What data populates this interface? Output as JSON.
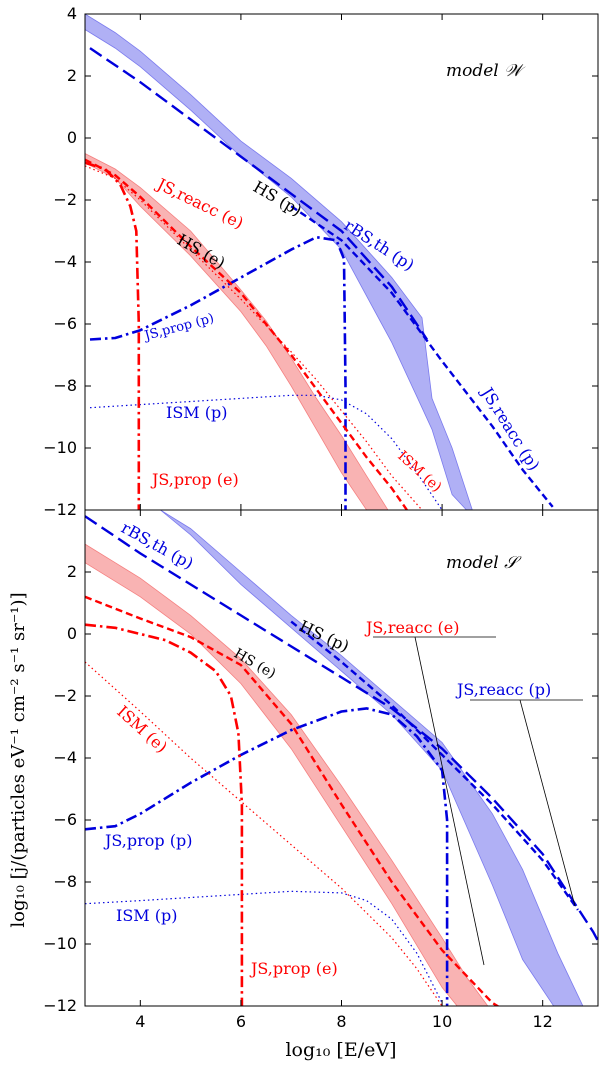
{
  "colors": {
    "red": "#ff0000",
    "blue": "#0000dd",
    "blue_band": "#7b7bee",
    "red_band": "#f58080",
    "black": "#000000"
  },
  "axes": {
    "xlabel": "log₁₀ [E/eV]",
    "ylabel": "log₁₀ [j/(particles eV⁻¹ cm⁻² s⁻¹ sr⁻¹)]",
    "xlim": [
      2.9,
      13.1
    ],
    "xticks": [
      4,
      6,
      8,
      10,
      12
    ],
    "xtick_labels": [
      "4",
      "6",
      "8",
      "10",
      "12"
    ]
  },
  "chart_data": [
    {
      "type": "line",
      "panel": "top",
      "model_label": "model 𝒲",
      "ylim": [
        -12,
        4
      ],
      "yticks": [
        -12,
        -10,
        -8,
        -6,
        -4,
        -2,
        0,
        2,
        4
      ],
      "ytick_labels": [
        "−12",
        "−10",
        "−8",
        "−6",
        "−4",
        "−2",
        "0",
        "2",
        "4"
      ],
      "bands": [
        {
          "name": "HS (p)",
          "color": "blue_band",
          "x": [
            2.9,
            3.5,
            4,
            5,
            6,
            7,
            8,
            9,
            9.6,
            9.8,
            10.2,
            10.6
          ],
          "upper": [
            4.0,
            3.4,
            2.8,
            1.4,
            -0.1,
            -1.3,
            -2.7,
            -4.5,
            -5.8,
            -8.4,
            -10.0,
            -12.0
          ],
          "lower": [
            3.5,
            2.9,
            2.3,
            0.9,
            -0.6,
            -1.9,
            -3.6,
            -6.6,
            -8.7,
            -9.4,
            -11.5,
            -12.2
          ]
        },
        {
          "name": "HS (e)",
          "color": "red_band",
          "x": [
            2.9,
            3.5,
            4,
            5,
            6,
            6.5,
            7,
            7.5,
            8,
            8.5,
            9
          ],
          "upper": [
            -0.5,
            -1.0,
            -1.6,
            -3.0,
            -4.9,
            -5.9,
            -7.1,
            -8.4,
            -9.6,
            -10.9,
            -12.2
          ],
          "lower": [
            -0.8,
            -1.3,
            -2.2,
            -3.8,
            -5.6,
            -6.7,
            -8.0,
            -9.4,
            -10.8,
            -12.0,
            -12.5
          ]
        }
      ],
      "series": [
        {
          "name": "rBS,th (p)",
          "color": "blue",
          "style": "longdash",
          "x": [
            3,
            4,
            5,
            6,
            7,
            8,
            9,
            9.7
          ],
          "y": [
            2.9,
            1.8,
            0.6,
            -0.6,
            -1.8,
            -3.0,
            -4.8,
            -6.5
          ]
        },
        {
          "name": "JS,reacc (p)",
          "color": "blue",
          "style": "dash",
          "x": [
            7,
            8,
            9,
            10,
            11,
            11.6,
            12.2
          ],
          "y": [
            -2.2,
            -3.3,
            -5.0,
            -7.2,
            -9.3,
            -10.7,
            -11.9
          ]
        },
        {
          "name": "JS,prop (p)",
          "color": "blue",
          "style": "dashdot",
          "x": [
            3,
            3.5,
            4,
            5,
            6,
            7,
            7.5,
            7.9,
            8.05,
            8.08,
            8.08
          ],
          "y": [
            -6.5,
            -6.45,
            -6.2,
            -5.4,
            -4.5,
            -3.6,
            -3.2,
            -3.3,
            -3.9,
            -8,
            -12
          ]
        },
        {
          "name": "ISM (p)",
          "color": "blue",
          "style": "dotted",
          "x": [
            3,
            4,
            5,
            6,
            7,
            7.5,
            8,
            8.5,
            9,
            9.5,
            10
          ],
          "y": [
            -8.7,
            -8.6,
            -8.5,
            -8.4,
            -8.3,
            -8.3,
            -8.45,
            -8.9,
            -9.7,
            -10.8,
            -12.0
          ]
        },
        {
          "name": "JS,reacc (e)",
          "color": "red",
          "style": "dash",
          "x": [
            2.9,
            3.5,
            4,
            5,
            6,
            7,
            7.5,
            8,
            8.5,
            9,
            9.3
          ],
          "y": [
            -0.7,
            -1.2,
            -1.9,
            -3.5,
            -5.0,
            -7.0,
            -8.1,
            -9.2,
            -10.3,
            -11.3,
            -12.0
          ]
        },
        {
          "name": "JS,prop (e)",
          "color": "red",
          "style": "dashdot",
          "x": [
            2.9,
            3.3,
            3.6,
            3.8,
            3.92,
            3.97,
            3.97
          ],
          "y": [
            -0.8,
            -1.0,
            -1.5,
            -2.2,
            -3.0,
            -6.0,
            -12.0
          ]
        },
        {
          "name": "ISM (e)",
          "color": "red",
          "style": "dotted",
          "x": [
            2.9,
            3.5,
            4,
            5,
            6,
            7,
            7.5,
            8,
            8.5,
            9,
            9.6
          ],
          "y": [
            -0.9,
            -1.3,
            -2.0,
            -3.6,
            -5.2,
            -6.9,
            -7.8,
            -8.8,
            -9.8,
            -10.9,
            -12.0
          ]
        }
      ],
      "annotations": [
        {
          "text": "HS (p)",
          "color": "black"
        },
        {
          "text": "HS (e)",
          "color": "black"
        },
        {
          "text": "JS,reacc (e)",
          "color": "red"
        },
        {
          "text": "rBS,th (p)",
          "color": "blue"
        },
        {
          "text": "JS,prop (p)",
          "color": "blue"
        },
        {
          "text": "ISM (p)",
          "color": "blue"
        },
        {
          "text": "JS,prop (e)",
          "color": "red"
        },
        {
          "text": "ISM (e)",
          "color": "red"
        },
        {
          "text": "JS,reacc (p)",
          "color": "blue"
        }
      ]
    },
    {
      "type": "line",
      "panel": "bottom",
      "model_label": "model 𝒮",
      "ylim": [
        -12,
        4
      ],
      "yticks": [
        -12,
        -10,
        -8,
        -6,
        -4,
        -2,
        0,
        2
      ],
      "ytick_labels": [
        "−12",
        "−10",
        "−8",
        "−6",
        "−4",
        "−2",
        "0",
        "2"
      ],
      "bands": [
        {
          "name": "HS (p)",
          "color": "blue_band",
          "x": [
            4.4,
            5,
            6,
            7,
            8,
            9,
            10,
            11,
            11.6,
            12.3,
            12.8
          ],
          "upper": [
            4.0,
            3.4,
            2.0,
            0.6,
            -0.7,
            -2.1,
            -3.5,
            -5.8,
            -7.6,
            -10.3,
            -12.0
          ],
          "lower": [
            4.0,
            3.2,
            1.6,
            0.2,
            -1.2,
            -2.6,
            -4.4,
            -8.1,
            -10.5,
            -12.2,
            -12.4
          ]
        },
        {
          "name": "HS (e)",
          "color": "red_band",
          "x": [
            2.9,
            3.5,
            4,
            5,
            6,
            7,
            8,
            9,
            10,
            10.5,
            11
          ],
          "upper": [
            2.9,
            2.3,
            1.8,
            0.6,
            -0.8,
            -2.6,
            -4.9,
            -7.3,
            -9.8,
            -11.1,
            -12.2
          ],
          "lower": [
            2.3,
            1.7,
            1.2,
            0.0,
            -1.6,
            -3.7,
            -6.2,
            -8.7,
            -11.4,
            -12.4,
            -12.5
          ]
        }
      ],
      "series": [
        {
          "name": "rBS,th (p)",
          "color": "blue",
          "style": "longdash",
          "x": [
            2.9,
            4,
            6,
            8,
            9,
            10,
            11,
            12,
            13,
            13.1
          ],
          "y": [
            3.8,
            2.6,
            0.6,
            -1.4,
            -2.4,
            -3.7,
            -5.3,
            -7.1,
            -9.6,
            -9.9
          ]
        },
        {
          "name": "JS,reacc (p)",
          "color": "blue",
          "style": "dash",
          "x": [
            7,
            8,
            9,
            10,
            11,
            12,
            12.7
          ],
          "y": [
            0.4,
            -0.9,
            -2.3,
            -3.9,
            -5.5,
            -7.3,
            -8.9
          ]
        },
        {
          "name": "JS,prop (p)",
          "color": "blue",
          "style": "dashdot",
          "x": [
            2.9,
            3.5,
            4,
            5,
            6,
            7,
            8,
            8.5,
            9,
            9.5,
            10,
            10.1,
            10.1
          ],
          "y": [
            -6.3,
            -6.2,
            -5.8,
            -4.8,
            -3.9,
            -3.1,
            -2.5,
            -2.4,
            -2.6,
            -3.3,
            -4.4,
            -6.0,
            -12.0
          ]
        },
        {
          "name": "ISM (p)",
          "color": "blue",
          "style": "dotted",
          "x": [
            2.9,
            4,
            5,
            6,
            7,
            8,
            8.5,
            9,
            9.5,
            10
          ],
          "y": [
            -8.7,
            -8.6,
            -8.5,
            -8.4,
            -8.3,
            -8.35,
            -8.6,
            -9.2,
            -10.3,
            -11.9
          ]
        },
        {
          "name": "JS,reacc (e)",
          "color": "red",
          "style": "dash",
          "x": [
            2.9,
            4,
            5,
            6,
            7,
            8,
            9,
            10,
            11,
            11.3
          ],
          "y": [
            1.2,
            0.5,
            -0.1,
            -1.0,
            -2.9,
            -5.5,
            -8.0,
            -10.2,
            -11.9,
            -12.2
          ]
        },
        {
          "name": "JS,prop (e)",
          "color": "red",
          "style": "dashdot",
          "x": [
            2.9,
            3.5,
            4,
            4.5,
            5,
            5.5,
            5.8,
            5.95,
            6.02,
            6.02
          ],
          "y": [
            0.3,
            0.2,
            0.0,
            -0.2,
            -0.6,
            -1.2,
            -2.0,
            -3.2,
            -5.5,
            -12.0
          ]
        },
        {
          "name": "ISM (e)",
          "color": "red",
          "style": "dotted",
          "x": [
            2.9,
            4,
            5,
            6,
            7,
            8,
            9,
            9.5,
            10
          ],
          "y": [
            -0.9,
            -2.5,
            -4.0,
            -5.4,
            -6.8,
            -8.2,
            -9.8,
            -10.8,
            -12.0
          ]
        }
      ],
      "annotations": [
        {
          "text": "rBS,th (p)",
          "color": "blue"
        },
        {
          "text": "HS (p)",
          "color": "black"
        },
        {
          "text": "HS (e)",
          "color": "black"
        },
        {
          "text": "JS,reacc (e)",
          "color": "red"
        },
        {
          "text": "JS,reacc (p)",
          "color": "blue"
        },
        {
          "text": "ISM (e)",
          "color": "red"
        },
        {
          "text": "JS,prop (p)",
          "color": "blue"
        },
        {
          "text": "ISM (p)",
          "color": "blue"
        },
        {
          "text": "JS,prop (e)",
          "color": "red"
        }
      ]
    }
  ]
}
